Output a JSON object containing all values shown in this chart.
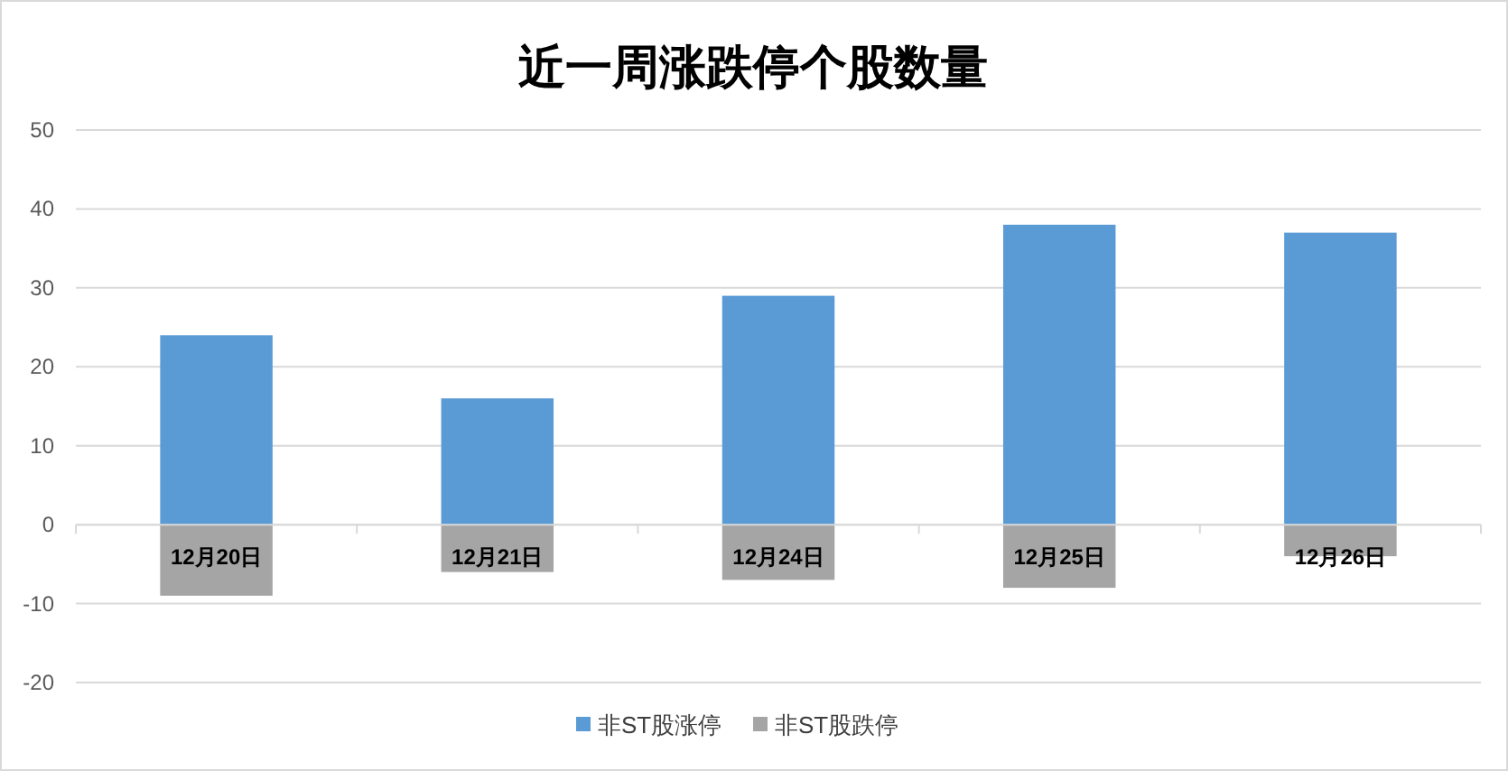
{
  "chart_data": {
    "type": "bar",
    "title": "近一周涨跌停个股数量",
    "stacked": true,
    "categories": [
      "12月20日",
      "12月21日",
      "12月24日",
      "12月25日",
      "12月26日"
    ],
    "series": [
      {
        "name": "非ST股涨停",
        "color": "#5b9bd5",
        "values": [
          24,
          16,
          29,
          38,
          37
        ]
      },
      {
        "name": "非ST股跌停",
        "color": "#a5a5a5",
        "values": [
          -9,
          -6,
          -7,
          -8,
          -4
        ]
      }
    ],
    "ylim": [
      -20,
      50
    ],
    "yticks": [
      -20,
      -10,
      0,
      10,
      20,
      30,
      40,
      50
    ],
    "grid": "y",
    "legend": "bottom"
  }
}
